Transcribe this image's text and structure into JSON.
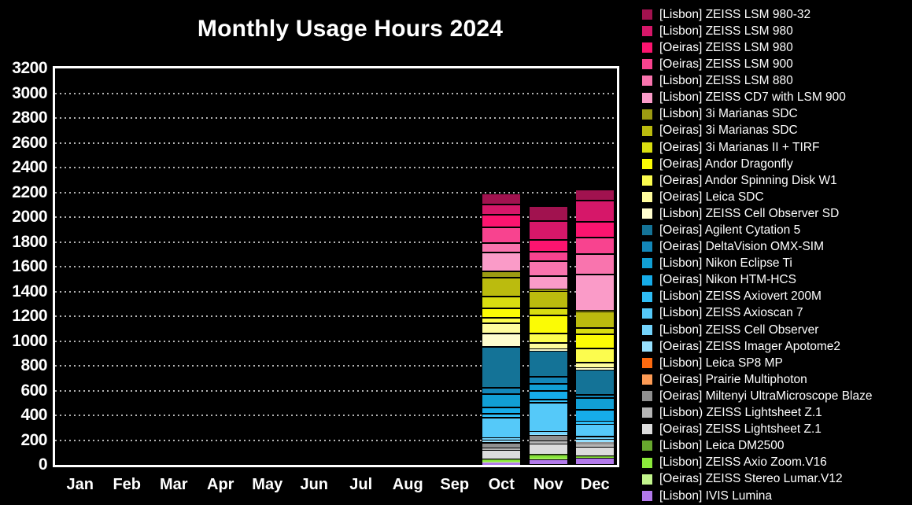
{
  "title": "Monthly Usage Hours 2024",
  "colors": {
    "background": "#000000",
    "text": "#FFFFFF",
    "frame": "#FFFFFF",
    "grid": "#B4B4B4",
    "segment_separator": "#000000"
  },
  "chart_data": {
    "type": "bar",
    "stacked": true,
    "title": "Monthly Usage Hours 2024",
    "xlabel": "",
    "ylabel": "",
    "ylim": [
      0,
      3200
    ],
    "ytick_step": 200,
    "yticks": [
      0,
      200,
      400,
      600,
      800,
      1000,
      1200,
      1400,
      1600,
      1800,
      2000,
      2200,
      2400,
      2600,
      2800,
      3000,
      3200
    ],
    "grid": "horizontal-dotted",
    "legend_position": "right",
    "categories": [
      "Jan",
      "Feb",
      "Mar",
      "Apr",
      "May",
      "Jun",
      "Jul",
      "Aug",
      "Sep",
      "Oct",
      "Nov",
      "Dec"
    ],
    "month_totals_note": "bars only present for Oct, Nov, Dec",
    "series": [
      {
        "name": "[Lisbon] ZEISS LSM 980-32",
        "color": "#A1124F",
        "values": [
          0,
          0,
          0,
          0,
          0,
          0,
          0,
          0,
          0,
          90,
          120,
          90
        ]
      },
      {
        "name": "[Lisbon] ZEISS LSM 980",
        "color": "#D61769",
        "values": [
          0,
          0,
          0,
          0,
          0,
          0,
          0,
          0,
          0,
          80,
          150,
          170
        ]
      },
      {
        "name": "[Oeiras] ZEISS LSM 980",
        "color": "#FB146F",
        "values": [
          0,
          0,
          0,
          0,
          0,
          0,
          0,
          0,
          0,
          100,
          100,
          130
        ]
      },
      {
        "name": "[Oeiras] ZEISS LSM 900",
        "color": "#F8438F",
        "values": [
          0,
          0,
          0,
          0,
          0,
          0,
          0,
          0,
          0,
          130,
          75,
          130
        ]
      },
      {
        "name": "[Lisbon] ZEISS LSM 880",
        "color": "#F974AE",
        "values": [
          0,
          0,
          0,
          0,
          0,
          0,
          0,
          0,
          0,
          75,
          120,
          165
        ]
      },
      {
        "name": "[Lisbon] ZEISS CD7 with LSM 900",
        "color": "#FA9BC8",
        "values": [
          0,
          0,
          0,
          0,
          0,
          0,
          0,
          0,
          0,
          155,
          110,
          290
        ]
      },
      {
        "name": "[Lisbon] 3i Marianas SDC",
        "color": "#9C9A12",
        "values": [
          0,
          0,
          0,
          0,
          0,
          0,
          0,
          0,
          0,
          50,
          10,
          10
        ]
      },
      {
        "name": "[Oeiras] 3i Marianas SDC",
        "color": "#BBBB0E",
        "values": [
          0,
          0,
          0,
          0,
          0,
          0,
          0,
          0,
          0,
          150,
          140,
          135
        ]
      },
      {
        "name": "[Oeiras] 3i Marianas II + TIRF",
        "color": "#D9DD10",
        "values": [
          0,
          0,
          0,
          0,
          0,
          0,
          0,
          0,
          0,
          95,
          55,
          50
        ]
      },
      {
        "name": "[Oeiras] Andor Dragonfly",
        "color": "#FBFB05",
        "values": [
          0,
          0,
          0,
          0,
          0,
          0,
          0,
          0,
          0,
          80,
          150,
          115
        ]
      },
      {
        "name": "[Oeiras] Andor Spinning Disk W1",
        "color": "#FCFC4E",
        "values": [
          0,
          0,
          0,
          0,
          0,
          0,
          0,
          0,
          0,
          45,
          75,
          110
        ]
      },
      {
        "name": "[Oeiras] Leica SDC",
        "color": "#FFFC9C",
        "values": [
          0,
          0,
          0,
          0,
          0,
          0,
          0,
          0,
          0,
          80,
          50,
          45
        ]
      },
      {
        "name": "[Lisbon] ZEISS Cell Observer SD",
        "color": "#FFFDCE",
        "values": [
          0,
          0,
          0,
          0,
          0,
          0,
          0,
          0,
          0,
          110,
          15,
          15
        ]
      },
      {
        "name": "[Oeiras] Agilent Cytation 5",
        "color": "#147397",
        "values": [
          0,
          0,
          0,
          0,
          0,
          0,
          0,
          0,
          0,
          330,
          210,
          200
        ]
      },
      {
        "name": "[Oeiras] DeltaVision OMX-SIM",
        "color": "#1387B9",
        "values": [
          0,
          0,
          0,
          0,
          0,
          0,
          0,
          0,
          0,
          50,
          55,
          30
        ]
      },
      {
        "name": "[Lisbon] Nikon Eclipse Ti",
        "color": "#119FD4",
        "values": [
          0,
          0,
          0,
          0,
          0,
          0,
          0,
          0,
          0,
          110,
          55,
          95
        ]
      },
      {
        "name": "[Oeiras] Nikon HTM-HCS",
        "color": "#16ACE9",
        "values": [
          0,
          0,
          0,
          0,
          0,
          0,
          0,
          0,
          0,
          50,
          70,
          95
        ]
      },
      {
        "name": "[Lisbon] ZEISS Axiovert 200M",
        "color": "#2FBDF5",
        "values": [
          0,
          0,
          0,
          0,
          0,
          0,
          0,
          0,
          0,
          30,
          25,
          20
        ]
      },
      {
        "name": "[Lisbon] ZEISS Axioscan 7",
        "color": "#55C9F9",
        "values": [
          0,
          0,
          0,
          0,
          0,
          0,
          0,
          0,
          0,
          165,
          240,
          100
        ]
      },
      {
        "name": "[Lisbon] ZEISS Cell Observer",
        "color": "#73D3FB",
        "values": [
          0,
          0,
          0,
          0,
          0,
          0,
          0,
          0,
          0,
          15,
          15,
          25
        ]
      },
      {
        "name": "[Oeiras] ZEISS Imager Apotome2",
        "color": "#97E0FE",
        "values": [
          0,
          0,
          0,
          0,
          0,
          0,
          0,
          0,
          0,
          20,
          10,
          15
        ]
      },
      {
        "name": "[Lisbon] Leica SP8 MP",
        "color": "#FC6A10",
        "values": [
          0,
          0,
          0,
          0,
          0,
          0,
          0,
          0,
          0,
          0,
          0,
          0
        ]
      },
      {
        "name": "[Oeiras] Prairie Multiphoton",
        "color": "#FD9B55",
        "values": [
          0,
          0,
          0,
          0,
          0,
          0,
          0,
          0,
          0,
          0,
          0,
          0
        ]
      },
      {
        "name": "[Oeiras] Miltenyi UltraMicroscope Blaze",
        "color": "#8F8F8F",
        "values": [
          0,
          0,
          0,
          0,
          0,
          0,
          0,
          0,
          0,
          50,
          50,
          20
        ]
      },
      {
        "name": "[Lisbon) ZEISS Lightsheet Z.1",
        "color": "#B5B5B5",
        "values": [
          0,
          0,
          0,
          0,
          0,
          0,
          0,
          0,
          0,
          10,
          20,
          20
        ]
      },
      {
        "name": "[Oeiras] ZEISS Lightsheet Z.1",
        "color": "#DCDCDC",
        "values": [
          0,
          0,
          0,
          0,
          0,
          0,
          0,
          0,
          0,
          75,
          85,
          80
        ]
      },
      {
        "name": "[Lisbon] Leica DM2500",
        "color": "#67A72E",
        "values": [
          0,
          0,
          0,
          0,
          0,
          0,
          0,
          0,
          0,
          5,
          15,
          5
        ]
      },
      {
        "name": "[Lisbon] ZEISS Axio Zoom.V16",
        "color": "#8BE93B",
        "values": [
          0,
          0,
          0,
          0,
          0,
          0,
          0,
          0,
          0,
          15,
          20,
          5
        ]
      },
      {
        "name": "[Oeiras] ZEISS Stereo Lumar.V12",
        "color": "#C2F58C",
        "values": [
          0,
          0,
          0,
          0,
          0,
          0,
          0,
          0,
          0,
          5,
          5,
          0
        ]
      },
      {
        "name": "[Lisbon] IVIS Lumina",
        "color": "#B279EA",
        "values": [
          0,
          0,
          0,
          0,
          0,
          0,
          0,
          0,
          0,
          20,
          45,
          55
        ]
      }
    ]
  }
}
